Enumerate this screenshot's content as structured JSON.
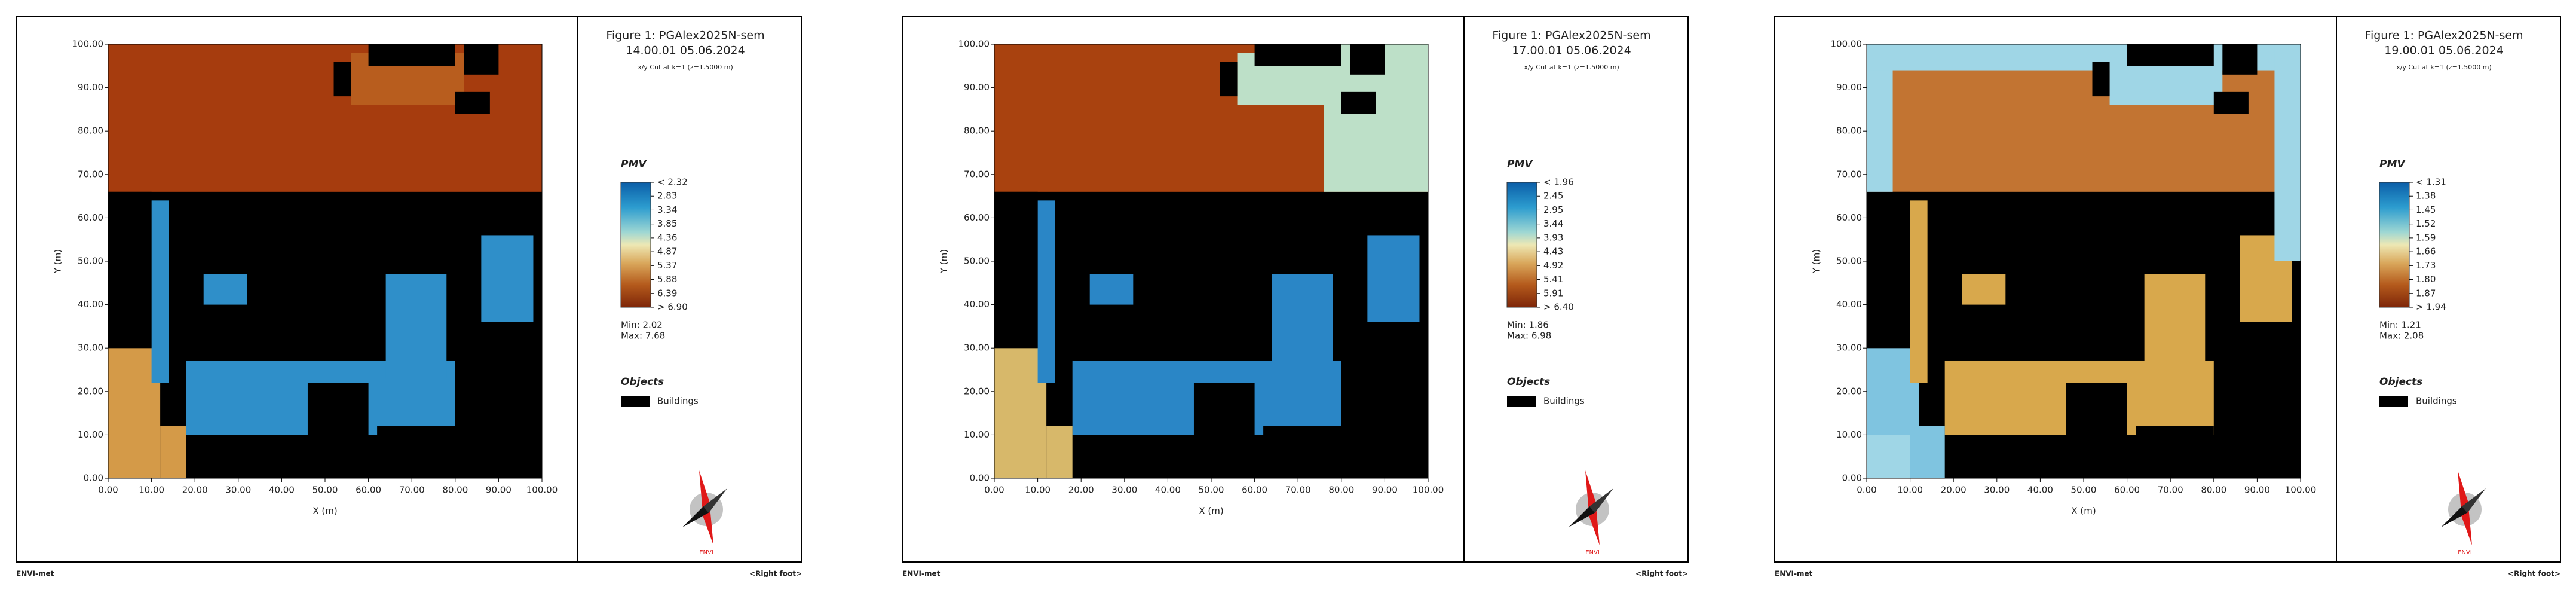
{
  "panels": [
    {
      "title": "Figure 1: PGAlex2025N-sem",
      "time": "14.00.01 05.06.2024",
      "cut": "x/y Cut at k=1 (z=1.5000 m)",
      "legend_title": "PMV",
      "legend_labels": [
        "< 2.32",
        "2.83",
        "3.34",
        "3.85",
        "4.36",
        "4.87",
        "5.37",
        "5.88",
        "6.39",
        "> 6.90"
      ],
      "min": "Min: 2.02",
      "max": "Max: 7.68",
      "objects_title": "Objects",
      "objects_label": "Buildings",
      "x_axis_title": "X (m)",
      "y_axis_title": "Y (m)",
      "x_ticks": [
        "0.00",
        "10.00",
        "20.00",
        "30.00",
        "40.00",
        "50.00",
        "60.00",
        "70.00",
        "80.00",
        "90.00",
        "100.00"
      ],
      "y_ticks": [
        "0.00",
        "10.00",
        "20.00",
        "30.00",
        "40.00",
        "50.00",
        "60.00",
        "70.00",
        "80.00",
        "90.00",
        "100.00"
      ],
      "compass_label": "ENVI",
      "footer_left": "ENVI-met",
      "footer_right": "<Right foot>"
    },
    {
      "title": "Figure 1: PGAlex2025N-sem",
      "time": "17.00.01 05.06.2024",
      "cut": "x/y Cut at k=1 (z=1.5000 m)",
      "legend_title": "PMV",
      "legend_labels": [
        "< 1.96",
        "2.45",
        "2.95",
        "3.44",
        "3.93",
        "4.43",
        "4.92",
        "5.41",
        "5.91",
        "> 6.40"
      ],
      "min": "Min: 1.86",
      "max": "Max: 6.98",
      "objects_title": "Objects",
      "objects_label": "Buildings",
      "x_axis_title": "X (m)",
      "y_axis_title": "Y (m)",
      "x_ticks": [
        "0.00",
        "10.00",
        "20.00",
        "30.00",
        "40.00",
        "50.00",
        "60.00",
        "70.00",
        "80.00",
        "90.00",
        "100.00"
      ],
      "y_ticks": [
        "0.00",
        "10.00",
        "20.00",
        "30.00",
        "40.00",
        "50.00",
        "60.00",
        "70.00",
        "80.00",
        "90.00",
        "100.00"
      ],
      "compass_label": "ENVI",
      "footer_left": "ENVI-met",
      "footer_right": "<Right foot>"
    },
    {
      "title": "Figure 1: PGAlex2025N-sem",
      "time": "19.00.01 05.06.2024",
      "cut": "x/y Cut at k=1 (z=1.5000 m)",
      "legend_title": "PMV",
      "legend_labels": [
        "< 1.31",
        "1.38",
        "1.45",
        "1.52",
        "1.59",
        "1.66",
        "1.73",
        "1.80",
        "1.87",
        "> 1.94"
      ],
      "min": "Min: 1.21",
      "max": "Max: 2.08",
      "objects_title": "Objects",
      "objects_label": "Buildings",
      "x_axis_title": "X (m)",
      "y_axis_title": "Y (m)",
      "x_ticks": [
        "0.00",
        "10.00",
        "20.00",
        "30.00",
        "40.00",
        "50.00",
        "60.00",
        "70.00",
        "80.00",
        "90.00",
        "100.00"
      ],
      "y_ticks": [
        "0.00",
        "10.00",
        "20.00",
        "30.00",
        "40.00",
        "50.00",
        "60.00",
        "70.00",
        "80.00",
        "90.00",
        "100.00"
      ],
      "compass_label": "ENVI",
      "footer_left": "ENVI-met",
      "footer_right": "<Right foot>"
    }
  ]
}
